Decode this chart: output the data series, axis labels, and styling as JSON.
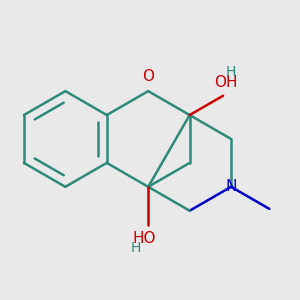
{
  "background_color": "#e9e9e9",
  "bond_color": "#2d8a7a",
  "oxygen_color": "#cc0000",
  "nitrogen_color": "#0000cc",
  "line_width": 1.8,
  "figsize": [
    3.0,
    3.0
  ],
  "dpi": 100,
  "xlim": [
    -1.6,
    1.6
  ],
  "ylim": [
    -1.3,
    1.3
  ]
}
